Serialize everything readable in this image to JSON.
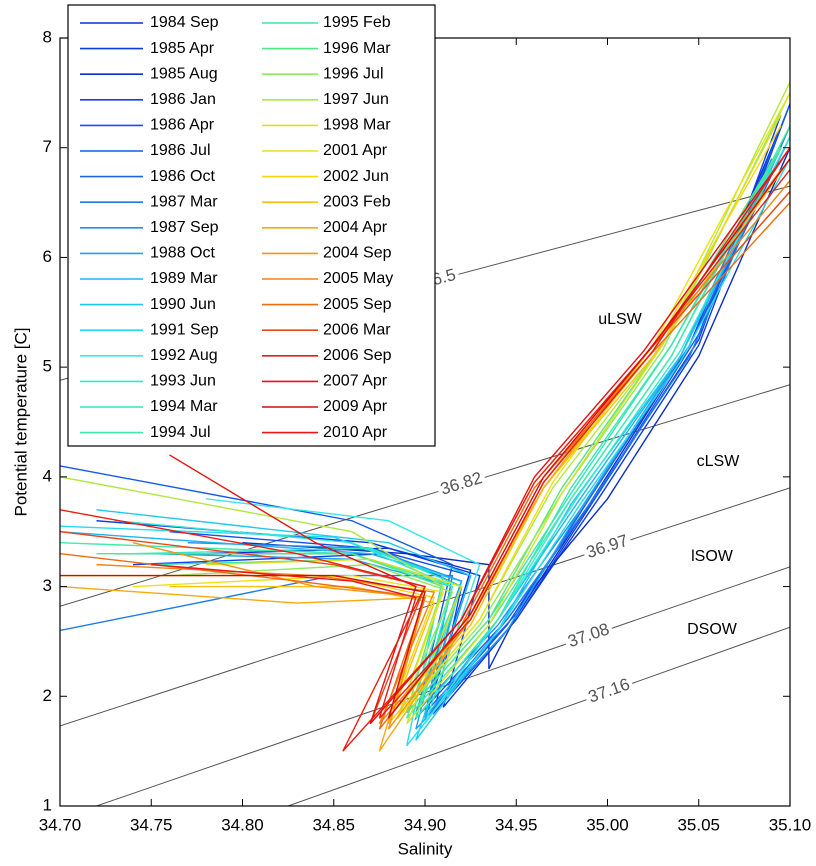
{
  "chart_data": {
    "type": "line",
    "xlabel": "Salinity",
    "ylabel": "Potential temperature [C]",
    "xlim": [
      34.7,
      35.1
    ],
    "ylim": [
      1,
      8
    ],
    "xticks": [
      {
        "value": 34.7,
        "label": "34.70"
      },
      {
        "value": 34.75,
        "label": "34.75"
      },
      {
        "value": 34.8,
        "label": "34.80"
      },
      {
        "value": 34.85,
        "label": "34.85"
      },
      {
        "value": 34.9,
        "label": "34.90"
      },
      {
        "value": 34.95,
        "label": "34.95"
      },
      {
        "value": 35.0,
        "label": "35.00"
      },
      {
        "value": 35.05,
        "label": "35.05"
      },
      {
        "value": 35.1,
        "label": "35.10"
      }
    ],
    "yticks": [
      1,
      2,
      3,
      4,
      5,
      6,
      7,
      8
    ],
    "isopycnals": [
      {
        "label": "36.5",
        "x": [
          34.7,
          35.1
        ],
        "values": [
          4.88,
          6.65
        ]
      },
      {
        "label": "36.82",
        "x": [
          34.7,
          35.1
        ],
        "values": [
          2.82,
          4.84
        ]
      },
      {
        "label": "36.97",
        "x": [
          34.7,
          35.1
        ],
        "values": [
          1.73,
          3.9
        ]
      },
      {
        "label": "37.08",
        "x": [
          34.72,
          35.1
        ],
        "values": [
          1.0,
          3.18
        ]
      },
      {
        "label": "37.16",
        "x": [
          34.825,
          35.1
        ],
        "values": [
          1.0,
          2.63
        ]
      }
    ],
    "water_masses": [
      "uLSW",
      "cLSW",
      "lSOW",
      "DSOW"
    ],
    "series": [
      {
        "name": "1984 Sep",
        "color": "#0a2fd8",
        "x": [
          34.78,
          34.88,
          34.925,
          34.9,
          34.945,
          34.99,
          35.045,
          35.095
        ],
        "values": [
          3.3,
          3.35,
          3.15,
          1.8,
          2.6,
          3.75,
          5.2,
          7.2
        ]
      },
      {
        "name": "1985 Apr",
        "color": "#0a3ce0",
        "x": [
          34.72,
          34.87,
          34.93,
          34.91,
          34.95,
          34.995,
          35.05,
          35.1
        ],
        "values": [
          3.6,
          3.4,
          3.1,
          1.9,
          2.7,
          3.8,
          5.2,
          7.4
        ]
      },
      {
        "name": "1985 Aug",
        "color": "#0b2fc0",
        "x": [
          34.8,
          34.89,
          34.935,
          34.935,
          34.955,
          35.0,
          35.05,
          35.1
        ],
        "values": [
          3.4,
          3.3,
          3.2,
          2.25,
          2.9,
          3.8,
          5.1,
          7.0
        ]
      },
      {
        "name": "1986 Jan",
        "color": "#0d40e6",
        "x": [
          34.74,
          34.88,
          34.92,
          34.905,
          34.95,
          34.995,
          35.05,
          35.095
        ],
        "values": [
          3.2,
          3.3,
          3.0,
          1.85,
          2.7,
          3.85,
          5.25,
          7.3
        ]
      },
      {
        "name": "1986 Apr",
        "color": "#1050f0",
        "x": [
          34.76,
          34.87,
          34.925,
          34.9,
          34.945,
          34.99,
          35.045,
          35.1
        ],
        "values": [
          3.5,
          3.35,
          3.1,
          1.8,
          2.65,
          3.8,
          5.2,
          7.1
        ]
      },
      {
        "name": "1986 Jul",
        "color": "#1458ee",
        "x": [
          34.7,
          34.86,
          34.915,
          34.895,
          34.945,
          34.995,
          35.05,
          35.1
        ],
        "values": [
          4.1,
          3.6,
          3.2,
          1.8,
          2.7,
          3.85,
          5.3,
          7.4
        ]
      },
      {
        "name": "1986 Oct",
        "color": "#1a66e8",
        "x": [
          34.73,
          34.87,
          34.92,
          34.9,
          34.95,
          34.99,
          35.045,
          35.095
        ],
        "values": [
          3.3,
          3.3,
          3.05,
          1.85,
          2.75,
          3.8,
          5.2,
          7.0
        ]
      },
      {
        "name": "1987 Mar",
        "color": "#1e7ae8",
        "x": [
          34.7,
          34.85,
          34.915,
          34.9,
          34.945,
          34.99,
          35.045,
          35.1
        ],
        "values": [
          2.6,
          3.1,
          3.1,
          1.8,
          2.7,
          3.75,
          5.1,
          7.2
        ]
      },
      {
        "name": "1987 Sep",
        "color": "#1e8ef0",
        "x": [
          34.77,
          34.87,
          34.92,
          34.895,
          34.94,
          34.985,
          35.04,
          35.09
        ],
        "values": [
          3.4,
          3.35,
          3.05,
          1.85,
          2.65,
          3.7,
          5.1,
          6.9
        ]
      },
      {
        "name": "1988 Oct",
        "color": "#1ea2f0",
        "x": [
          34.75,
          34.86,
          34.915,
          34.895,
          34.945,
          34.985,
          35.04,
          35.095
        ],
        "values": [
          3.3,
          3.25,
          3.0,
          1.7,
          2.6,
          3.7,
          5.1,
          7.0
        ]
      },
      {
        "name": "1989 Mar",
        "color": "#1eb4f0",
        "x": [
          34.7,
          34.87,
          34.92,
          34.9,
          34.94,
          34.985,
          35.04,
          35.1
        ],
        "values": [
          3.5,
          3.3,
          3.05,
          1.8,
          2.7,
          3.8,
          5.1,
          7.1
        ]
      },
      {
        "name": "1990 Jun",
        "color": "#1ec8f0",
        "x": [
          34.72,
          34.88,
          34.925,
          34.895,
          34.94,
          34.98,
          35.04,
          35.095
        ],
        "values": [
          3.7,
          3.4,
          3.1,
          1.6,
          2.6,
          3.75,
          5.1,
          7.0
        ]
      },
      {
        "name": "1991 Sep",
        "color": "#22dcf0",
        "x": [
          34.7,
          34.85,
          34.91,
          34.89,
          34.94,
          34.985,
          35.04,
          35.1
        ],
        "values": [
          3.55,
          3.45,
          3.1,
          1.55,
          2.6,
          3.75,
          5.05,
          6.9
        ]
      },
      {
        "name": "1992 Aug",
        "color": "#3ae6e6",
        "x": [
          34.78,
          34.88,
          34.93,
          34.9,
          34.94,
          34.98,
          35.035,
          35.095
        ],
        "values": [
          3.8,
          3.6,
          3.2,
          1.75,
          2.7,
          3.8,
          5.1,
          7.0
        ]
      },
      {
        "name": "1993 Jun",
        "color": "#30e8d6",
        "x": [
          34.73,
          34.86,
          34.915,
          34.895,
          34.94,
          34.985,
          35.04,
          35.1
        ],
        "values": [
          3.6,
          3.4,
          3.0,
          1.8,
          2.7,
          3.85,
          5.15,
          7.1
        ]
      },
      {
        "name": "1994 Mar",
        "color": "#30e8c0",
        "x": [
          34.74,
          34.87,
          34.92,
          34.89,
          34.935,
          34.98,
          35.035,
          35.095
        ],
        "values": [
          3.3,
          3.35,
          3.0,
          1.85,
          2.7,
          3.85,
          5.2,
          7.0
        ]
      },
      {
        "name": "1994 Jul",
        "color": "#40eca8",
        "x": [
          34.7,
          34.86,
          34.915,
          34.89,
          34.935,
          34.98,
          35.035,
          35.1
        ],
        "values": [
          3.4,
          3.3,
          3.0,
          1.8,
          2.65,
          3.8,
          5.1,
          7.2
        ]
      },
      {
        "name": "1995 Feb",
        "color": "#3ce8a8",
        "x": [
          34.75,
          34.87,
          34.92,
          34.895,
          34.94,
          34.98,
          35.035,
          35.09
        ],
        "values": [
          3.2,
          3.25,
          3.0,
          1.8,
          2.7,
          3.9,
          5.2,
          6.8
        ]
      },
      {
        "name": "1996 Mar",
        "color": "#50e880",
        "x": [
          34.72,
          34.86,
          34.91,
          34.89,
          34.935,
          34.975,
          35.03,
          35.095
        ],
        "values": [
          3.3,
          3.3,
          3.0,
          1.85,
          2.7,
          3.9,
          5.2,
          7.0
        ]
      },
      {
        "name": "1996 Jul",
        "color": "#90e860",
        "x": [
          34.76,
          34.87,
          34.915,
          34.885,
          34.93,
          34.975,
          35.03,
          35.1
        ],
        "values": [
          3.1,
          3.2,
          2.95,
          1.8,
          2.65,
          3.85,
          5.15,
          7.5
        ]
      },
      {
        "name": "1997 Jun",
        "color": "#b0e840",
        "x": [
          34.7,
          34.86,
          34.91,
          34.885,
          34.93,
          34.97,
          35.03,
          35.1
        ],
        "values": [
          4.0,
          3.5,
          3.0,
          1.8,
          2.7,
          3.9,
          5.2,
          7.6
        ]
      },
      {
        "name": "1998 Mar",
        "color": "#d8e020",
        "x": [
          34.78,
          34.87,
          34.92,
          34.89,
          34.935,
          34.975,
          35.03,
          35.095
        ],
        "values": [
          3.2,
          3.25,
          3.0,
          1.75,
          2.65,
          3.85,
          5.2,
          7.3
        ]
      },
      {
        "name": "2001 Apr",
        "color": "#f0e010",
        "x": [
          34.74,
          34.86,
          34.91,
          34.885,
          34.93,
          34.97,
          35.025,
          35.1
        ],
        "values": [
          3.0,
          3.1,
          2.95,
          1.8,
          2.7,
          3.95,
          5.2,
          7.5
        ]
      },
      {
        "name": "2002 Jun",
        "color": "#f8d410",
        "x": [
          34.7,
          34.85,
          34.905,
          34.88,
          34.925,
          34.965,
          35.025,
          35.095
        ],
        "values": [
          3.1,
          3.1,
          2.9,
          1.8,
          2.7,
          3.9,
          5.15,
          7.2
        ]
      },
      {
        "name": "2003 Feb",
        "color": "#f8c010",
        "x": [
          34.76,
          34.86,
          34.905,
          34.88,
          34.925,
          34.965,
          35.025,
          35.1
        ],
        "values": [
          3.0,
          3.0,
          2.85,
          1.75,
          2.65,
          3.9,
          5.1,
          6.9
        ]
      },
      {
        "name": "2004 Apr",
        "color": "#f8a810",
        "x": [
          34.7,
          34.83,
          34.9,
          34.875,
          34.92,
          34.965,
          35.02,
          35.1
        ],
        "values": [
          3.0,
          2.85,
          2.9,
          1.5,
          2.6,
          3.9,
          5.1,
          6.6
        ]
      },
      {
        "name": "2004 Sep",
        "color": "#f89410",
        "x": [
          34.74,
          34.84,
          34.9,
          34.88,
          34.925,
          34.965,
          35.025,
          35.095
        ],
        "values": [
          3.4,
          3.0,
          2.9,
          1.7,
          2.7,
          3.95,
          5.2,
          6.8
        ]
      },
      {
        "name": "2005 May",
        "color": "#f88010",
        "x": [
          34.72,
          34.84,
          34.905,
          34.875,
          34.925,
          34.965,
          35.02,
          35.1
        ],
        "values": [
          3.2,
          3.1,
          2.95,
          1.75,
          2.7,
          3.95,
          5.1,
          6.7
        ]
      },
      {
        "name": "2005 Sep",
        "color": "#f06a10",
        "x": [
          34.7,
          34.83,
          34.9,
          34.875,
          34.92,
          34.96,
          35.02,
          35.1
        ],
        "values": [
          3.3,
          3.05,
          2.9,
          1.7,
          2.65,
          3.9,
          5.05,
          6.5
        ]
      },
      {
        "name": "2006 Mar",
        "color": "#e84818",
        "x": [
          34.7,
          34.85,
          34.9,
          34.87,
          34.92,
          34.96,
          35.02,
          35.1
        ],
        "values": [
          3.5,
          3.2,
          3.0,
          1.75,
          2.7,
          3.95,
          5.1,
          6.6
        ]
      },
      {
        "name": "2006 Sep",
        "color": "#e82010",
        "x": [
          34.7,
          34.83,
          34.9,
          34.855,
          34.92,
          34.96,
          35.02,
          35.1
        ],
        "values": [
          3.7,
          3.3,
          3.0,
          1.5,
          2.7,
          3.95,
          5.1,
          6.8
        ]
      },
      {
        "name": "2007 Apr",
        "color": "#e81010",
        "x": [
          34.76,
          34.84,
          34.895,
          34.87,
          34.92,
          34.96,
          35.02,
          35.1
        ],
        "values": [
          4.2,
          3.4,
          3.0,
          1.75,
          2.7,
          4.0,
          5.15,
          7.0
        ]
      },
      {
        "name": "2009 Apr",
        "color": "#d80808",
        "x": [
          34.7,
          34.85,
          34.9,
          34.88,
          34.925,
          34.965,
          35.025,
          35.1
        ],
        "values": [
          3.1,
          3.1,
          2.95,
          1.8,
          2.75,
          4.0,
          5.2,
          6.9
        ]
      },
      {
        "name": "2010 Apr",
        "color": "#e81818",
        "x": [
          34.75,
          34.86,
          34.895,
          34.875,
          34.925,
          34.965,
          35.025,
          35.1
        ],
        "values": [
          3.2,
          3.05,
          2.9,
          1.8,
          2.7,
          3.95,
          5.15,
          7.0
        ]
      }
    ]
  }
}
